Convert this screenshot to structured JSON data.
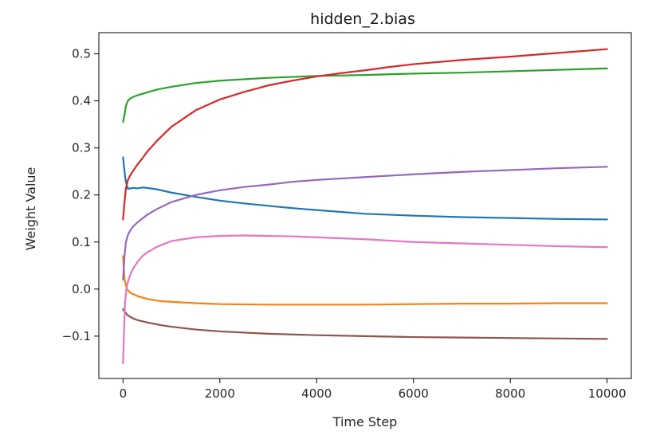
{
  "chart_data": {
    "type": "line",
    "title": "hidden_2.bias",
    "xlabel": "Time Step",
    "ylabel": "Weight Value",
    "xlim": [
      -500,
      10500
    ],
    "ylim": [
      -0.19,
      0.545
    ],
    "xticks": [
      0,
      2000,
      4000,
      6000,
      8000,
      10000
    ],
    "xtick_labels": [
      "0",
      "2000",
      "4000",
      "6000",
      "8000",
      "10000"
    ],
    "yticks": [
      -0.1,
      0.0,
      0.1,
      0.2,
      0.3,
      0.4,
      0.5
    ],
    "ytick_labels": [
      "−0.1",
      "0.0",
      "0.1",
      "0.2",
      "0.3",
      "0.4",
      "0.5"
    ],
    "grid": false,
    "legend": false,
    "series": [
      {
        "color": "#1f77b4",
        "x": [
          0,
          50,
          100,
          200,
          300,
          400,
          500,
          700,
          1000,
          1500,
          2000,
          2500,
          3000,
          3500,
          4000,
          4500,
          5000,
          6000,
          7000,
          8000,
          9000,
          10000
        ],
        "y": [
          0.28,
          0.232,
          0.213,
          0.215,
          0.214,
          0.216,
          0.215,
          0.212,
          0.205,
          0.196,
          0.188,
          0.182,
          0.177,
          0.172,
          0.168,
          0.164,
          0.16,
          0.156,
          0.153,
          0.151,
          0.149,
          0.148
        ]
      },
      {
        "color": "#ff7f0e",
        "x": [
          0,
          30,
          80,
          150,
          300,
          500,
          800,
          1500,
          2000,
          3000,
          4000,
          5000,
          6000,
          7000,
          8000,
          9000,
          10000
        ],
        "y": [
          0.07,
          0.02,
          0.0,
          -0.008,
          -0.015,
          -0.021,
          -0.026,
          -0.03,
          -0.032,
          -0.033,
          -0.033,
          -0.033,
          -0.032,
          -0.031,
          -0.031,
          -0.03,
          -0.03
        ]
      },
      {
        "color": "#2ca02c",
        "x": [
          0,
          30,
          60,
          100,
          150,
          200,
          300,
          500,
          700,
          1000,
          1500,
          2000,
          3000,
          4000,
          5000,
          6000,
          7000,
          8000,
          9000,
          10000
        ],
        "y": [
          0.355,
          0.37,
          0.39,
          0.4,
          0.405,
          0.408,
          0.412,
          0.418,
          0.424,
          0.43,
          0.438,
          0.443,
          0.449,
          0.453,
          0.455,
          0.458,
          0.46,
          0.463,
          0.466,
          0.469
        ]
      },
      {
        "color": "#d62728",
        "x": [
          0,
          30,
          60,
          100,
          150,
          200,
          300,
          400,
          500,
          700,
          1000,
          1500,
          2000,
          2500,
          3000,
          3500,
          4000,
          4500,
          5000,
          5500,
          6000,
          7000,
          8000,
          9000,
          10000
        ],
        "y": [
          0.148,
          0.185,
          0.215,
          0.232,
          0.242,
          0.25,
          0.265,
          0.278,
          0.292,
          0.315,
          0.345,
          0.38,
          0.403,
          0.419,
          0.433,
          0.443,
          0.452,
          0.459,
          0.465,
          0.472,
          0.478,
          0.487,
          0.494,
          0.502,
          0.51
        ]
      },
      {
        "color": "#9467bd",
        "x": [
          0,
          30,
          60,
          100,
          150,
          200,
          300,
          500,
          700,
          1000,
          1500,
          2000,
          2500,
          3000,
          3500,
          4000,
          5000,
          6000,
          7000,
          8000,
          9000,
          10000
        ],
        "y": [
          0.02,
          0.07,
          0.1,
          0.115,
          0.125,
          0.132,
          0.142,
          0.158,
          0.17,
          0.185,
          0.2,
          0.21,
          0.217,
          0.222,
          0.228,
          0.232,
          0.238,
          0.244,
          0.249,
          0.253,
          0.257,
          0.26
        ]
      },
      {
        "color": "#8c564b",
        "x": [
          0,
          50,
          100,
          200,
          300,
          500,
          800,
          1000,
          1500,
          2000,
          3000,
          4000,
          5000,
          6000,
          7000,
          8000,
          9000,
          10000
        ],
        "y": [
          -0.043,
          -0.05,
          -0.056,
          -0.062,
          -0.066,
          -0.071,
          -0.077,
          -0.08,
          -0.086,
          -0.09,
          -0.095,
          -0.098,
          -0.1,
          -0.102,
          -0.103,
          -0.104,
          -0.105,
          -0.106
        ]
      },
      {
        "color": "#e377c2",
        "x": [
          0,
          20,
          40,
          70,
          100,
          150,
          200,
          300,
          400,
          500,
          700,
          1000,
          1500,
          2000,
          2500,
          3000,
          3500,
          4000,
          5000,
          6000,
          7000,
          8000,
          9000,
          10000
        ],
        "y": [
          -0.158,
          -0.09,
          -0.03,
          0.0,
          0.015,
          0.03,
          0.042,
          0.058,
          0.07,
          0.078,
          0.09,
          0.102,
          0.11,
          0.113,
          0.114,
          0.113,
          0.112,
          0.11,
          0.106,
          0.1,
          0.097,
          0.094,
          0.091,
          0.089
        ]
      }
    ]
  }
}
